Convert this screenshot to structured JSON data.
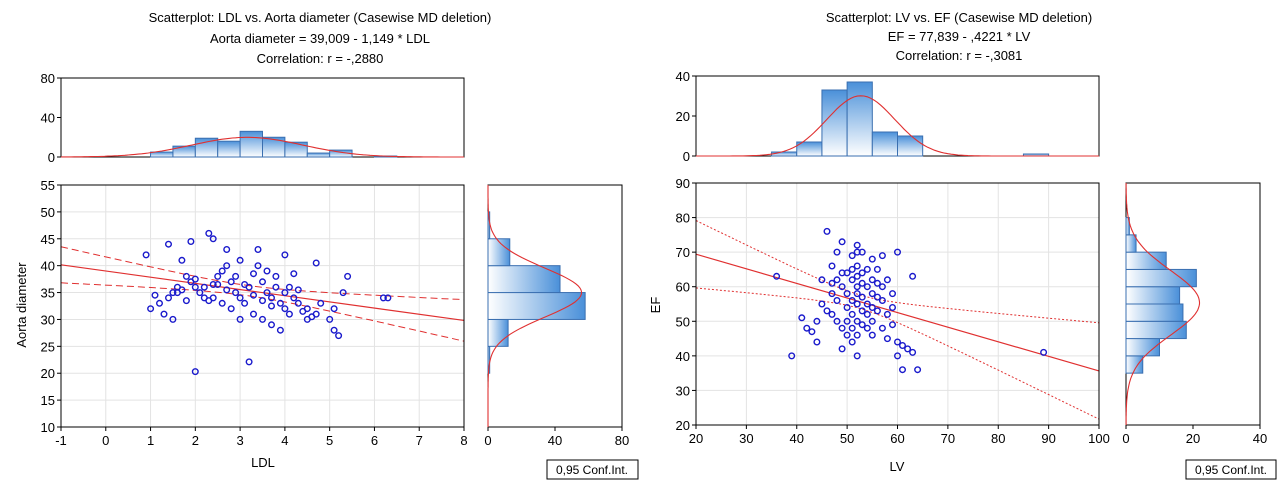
{
  "chart_data": [
    {
      "type": "scatter",
      "title_lines": [
        "Scatterplot: LDL      vs. Aorta diameter (Casewise MD deletion)",
        "Aorta diameter = 39,009 - 1,149  * LDL",
        "Correlation: r = -,2880"
      ],
      "xlabel": "LDL",
      "ylabel": "Aorta diameter",
      "xlim": [
        -1,
        8
      ],
      "ylim": [
        10,
        55
      ],
      "xticks": [
        "-1",
        "0",
        "1",
        "2",
        "3",
        "4",
        "5",
        "6",
        "7",
        "8"
      ],
      "yticks": [
        "10",
        "15",
        "20",
        "25",
        "30",
        "35",
        "40",
        "45",
        "50",
        "55"
      ],
      "regression": {
        "intercept": 39.009,
        "slope": -1.149
      },
      "conf_band_style": "dashed",
      "conf_label": "0,95 Conf.Int.",
      "top_hist": {
        "yticks": [
          "0",
          "40",
          "80"
        ],
        "ylim": [
          0,
          80
        ],
        "bins": [
          [
            1.0,
            1.5,
            5
          ],
          [
            1.5,
            2.0,
            11
          ],
          [
            2.0,
            2.5,
            19
          ],
          [
            2.5,
            3.0,
            16
          ],
          [
            3.0,
            3.5,
            26
          ],
          [
            3.5,
            4.0,
            20
          ],
          [
            4.0,
            4.5,
            15
          ],
          [
            4.5,
            5.0,
            4
          ],
          [
            5.0,
            5.5,
            7
          ],
          [
            6.0,
            6.5,
            1
          ]
        ]
      },
      "right_hist": {
        "xticks": [
          "0",
          "40",
          "80"
        ],
        "xlim": [
          0,
          80
        ],
        "bins": [
          [
            20,
            25,
            1
          ],
          [
            25,
            30,
            12
          ],
          [
            30,
            35,
            58
          ],
          [
            35,
            40,
            43
          ],
          [
            40,
            45,
            13
          ],
          [
            45,
            50,
            1
          ]
        ]
      },
      "points": [
        [
          2.0,
          20.3
        ],
        [
          3.2,
          22.1
        ],
        [
          0.9,
          42.0
        ],
        [
          1.4,
          44.0
        ],
        [
          1.7,
          41.0
        ],
        [
          1.9,
          44.5
        ],
        [
          2.3,
          46.0
        ],
        [
          2.4,
          45.0
        ],
        [
          2.7,
          43.0
        ],
        [
          3.4,
          43.0
        ],
        [
          1.0,
          32.0
        ],
        [
          1.2,
          33.0
        ],
        [
          1.3,
          31.0
        ],
        [
          1.4,
          34.0
        ],
        [
          1.5,
          35.0
        ],
        [
          1.6,
          36.0
        ],
        [
          1.7,
          35.5
        ],
        [
          1.8,
          38.0
        ],
        [
          1.9,
          37.0
        ],
        [
          2.0,
          36.0
        ],
        [
          2.1,
          35.0
        ],
        [
          2.2,
          34.0
        ],
        [
          2.3,
          33.5
        ],
        [
          2.4,
          36.5
        ],
        [
          2.5,
          38.0
        ],
        [
          2.6,
          39.0
        ],
        [
          2.7,
          40.0
        ],
        [
          2.8,
          37.0
        ],
        [
          2.9,
          35.0
        ],
        [
          3.0,
          34.0
        ],
        [
          3.1,
          33.0
        ],
        [
          3.2,
          36.0
        ],
        [
          3.3,
          38.5
        ],
        [
          3.4,
          40.0
        ],
        [
          3.5,
          37.0
        ],
        [
          3.6,
          35.0
        ],
        [
          3.7,
          34.0
        ],
        [
          3.8,
          36.0
        ],
        [
          3.9,
          33.0
        ],
        [
          4.0,
          35.0
        ],
        [
          4.1,
          36.0
        ],
        [
          4.2,
          34.0
        ],
        [
          4.3,
          33.0
        ],
        [
          4.4,
          31.5
        ],
        [
          4.5,
          32.0
        ],
        [
          4.6,
          30.5
        ],
        [
          4.7,
          31.0
        ],
        [
          4.8,
          33.0
        ],
        [
          5.0,
          30.0
        ],
        [
          5.1,
          28.0
        ],
        [
          5.2,
          27.0
        ],
        [
          5.3,
          35.0
        ],
        [
          5.4,
          38.0
        ],
        [
          6.2,
          34.0
        ],
        [
          6.3,
          34.0
        ],
        [
          4.7,
          40.5
        ],
        [
          4.0,
          42.0
        ],
        [
          3.0,
          41.0
        ],
        [
          2.9,
          38.0
        ],
        [
          2.5,
          36.5
        ],
        [
          2.2,
          36.0
        ],
        [
          1.6,
          35.0
        ],
        [
          1.8,
          33.5
        ],
        [
          2.0,
          37.5
        ],
        [
          3.6,
          39.0
        ],
        [
          3.8,
          38.0
        ],
        [
          4.2,
          38.5
        ],
        [
          3.3,
          31.0
        ],
        [
          3.5,
          30.0
        ],
        [
          3.7,
          29.0
        ],
        [
          3.9,
          28.0
        ],
        [
          4.1,
          31.0
        ],
        [
          2.8,
          32.0
        ],
        [
          2.6,
          33.0
        ],
        [
          3.0,
          30.0
        ],
        [
          1.5,
          30.0
        ],
        [
          2.4,
          34.0
        ],
        [
          2.7,
          35.5
        ],
        [
          3.1,
          36.5
        ],
        [
          3.3,
          34.5
        ],
        [
          3.5,
          33.5
        ],
        [
          3.7,
          32.5
        ],
        [
          4.0,
          32.0
        ],
        [
          4.3,
          35.5
        ],
        [
          4.5,
          30.0
        ],
        [
          5.1,
          32.0
        ],
        [
          1.1,
          34.5
        ]
      ]
    },
    {
      "type": "scatter",
      "title_lines": [
        "Scatterplot: LV       vs. EF       (Casewise MD deletion)",
        "EF       = 77,839 - ,4221  * LV",
        "Correlation: r = -,3081"
      ],
      "xlabel": "LV",
      "ylabel": "EF",
      "xlim": [
        20,
        100
      ],
      "ylim": [
        20,
        90
      ],
      "xticks": [
        "20",
        "30",
        "40",
        "50",
        "60",
        "70",
        "80",
        "90",
        "100"
      ],
      "yticks": [
        "20",
        "30",
        "40",
        "50",
        "60",
        "70",
        "80",
        "90"
      ],
      "regression": {
        "intercept": 77.839,
        "slope": -0.4221
      },
      "conf_band_style": "dotted",
      "conf_label": "0,95 Conf.Int.",
      "top_hist": {
        "yticks": [
          "0",
          "20",
          "40"
        ],
        "ylim": [
          0,
          40
        ],
        "bins": [
          [
            35,
            40,
            2
          ],
          [
            40,
            45,
            7
          ],
          [
            45,
            50,
            33
          ],
          [
            50,
            55,
            37
          ],
          [
            55,
            60,
            12
          ],
          [
            60,
            65,
            10
          ],
          [
            85,
            90,
            1
          ]
        ]
      },
      "right_hist": {
        "xticks": [
          "0",
          "20",
          "40"
        ],
        "xlim": [
          0,
          40
        ],
        "bins": [
          [
            35,
            40,
            5
          ],
          [
            40,
            45,
            10
          ],
          [
            45,
            50,
            18
          ],
          [
            50,
            55,
            17
          ],
          [
            55,
            60,
            16
          ],
          [
            60,
            65,
            21
          ],
          [
            65,
            70,
            12
          ],
          [
            70,
            75,
            3
          ],
          [
            75,
            80,
            1
          ]
        ]
      },
      "points": [
        [
          36,
          63
        ],
        [
          39,
          40
        ],
        [
          41,
          51
        ],
        [
          42,
          48
        ],
        [
          43,
          47
        ],
        [
          44,
          50
        ],
        [
          44,
          44
        ],
        [
          45,
          55
        ],
        [
          46,
          53
        ],
        [
          46,
          76
        ],
        [
          47,
          61
        ],
        [
          47,
          66
        ],
        [
          47,
          58
        ],
        [
          47,
          52
        ],
        [
          48,
          62
        ],
        [
          48,
          56
        ],
        [
          48,
          70
        ],
        [
          49,
          73
        ],
        [
          49,
          64
        ],
        [
          49,
          60
        ],
        [
          49,
          48
        ],
        [
          49,
          42
        ],
        [
          50,
          58
        ],
        [
          50,
          50
        ],
        [
          50,
          54
        ],
        [
          50,
          46
        ],
        [
          51,
          65
        ],
        [
          51,
          69
        ],
        [
          51,
          62
        ],
        [
          51,
          56
        ],
        [
          51,
          52
        ],
        [
          51,
          48
        ],
        [
          51,
          44
        ],
        [
          52,
          72
        ],
        [
          52,
          70
        ],
        [
          52,
          66
        ],
        [
          52,
          63
        ],
        [
          52,
          60
        ],
        [
          52,
          58
        ],
        [
          52,
          55
        ],
        [
          52,
          50
        ],
        [
          52,
          46
        ],
        [
          52,
          40
        ],
        [
          53,
          64
        ],
        [
          53,
          61
        ],
        [
          53,
          57
        ],
        [
          53,
          53
        ],
        [
          53,
          49
        ],
        [
          54,
          65
        ],
        [
          54,
          60
        ],
        [
          54,
          55
        ],
        [
          54,
          52
        ],
        [
          54,
          48
        ],
        [
          55,
          68
        ],
        [
          55,
          62
        ],
        [
          55,
          58
        ],
        [
          55,
          54
        ],
        [
          55,
          50
        ],
        [
          55,
          46
        ],
        [
          56,
          65
        ],
        [
          56,
          61
        ],
        [
          56,
          57
        ],
        [
          56,
          53
        ],
        [
          57,
          69
        ],
        [
          57,
          60
        ],
        [
          57,
          56
        ],
        [
          57,
          48
        ],
        [
          58,
          52
        ],
        [
          58,
          45
        ],
        [
          59,
          58
        ],
        [
          59,
          54
        ],
        [
          59,
          49
        ],
        [
          60,
          70
        ],
        [
          60,
          44
        ],
        [
          60,
          40
        ],
        [
          61,
          43
        ],
        [
          61,
          36
        ],
        [
          62,
          42
        ],
        [
          63,
          63
        ],
        [
          63,
          41
        ],
        [
          64,
          36
        ],
        [
          89,
          41
        ],
        [
          45,
          62
        ],
        [
          48,
          50
        ],
        [
          50,
          64
        ],
        [
          53,
          70
        ],
        [
          58,
          62
        ]
      ]
    }
  ]
}
